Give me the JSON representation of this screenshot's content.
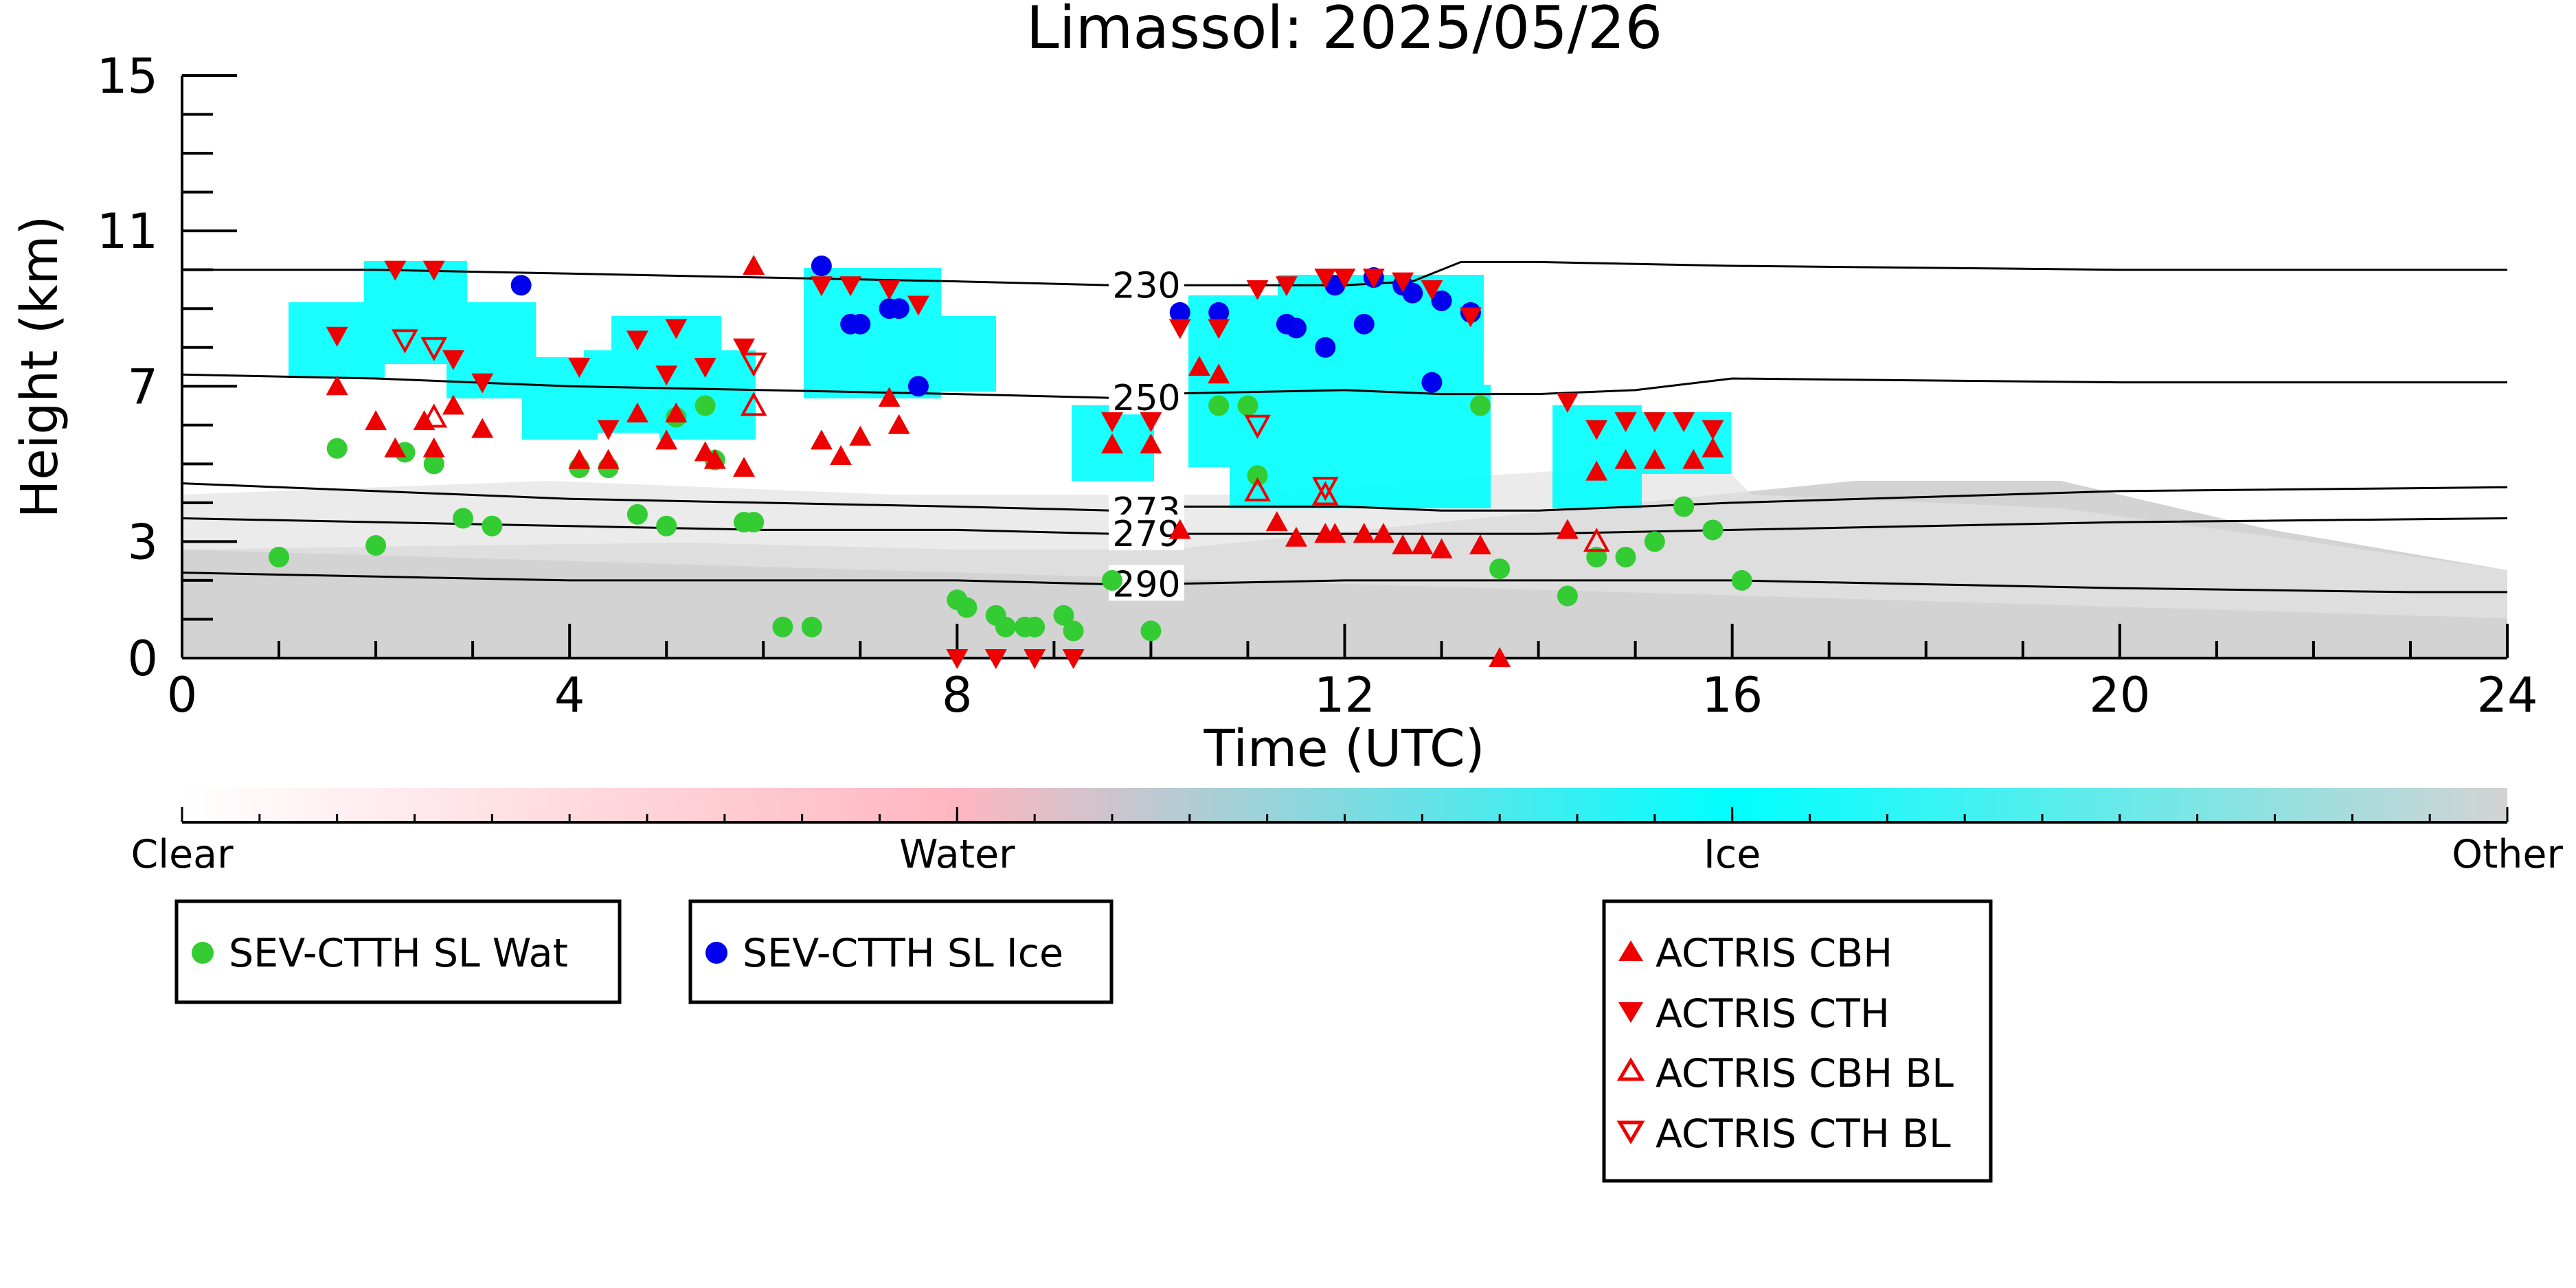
{
  "chart_data": {
    "type": "scatter",
    "title": "Limassol: 2025/05/26",
    "xlabel": "Time (UTC)",
    "ylabel": "Height (km)",
    "xlim": [
      0,
      24
    ],
    "ylim": [
      0,
      15
    ],
    "x_ticks": [
      "0",
      "4",
      "8",
      "12",
      "16",
      "20",
      "24"
    ],
    "y_ticks": [
      "0",
      "3",
      "7",
      "11",
      "15"
    ],
    "grid": false,
    "colorbar": {
      "labels": [
        "Clear",
        "Water",
        "Ice",
        "Other"
      ],
      "colors": [
        "#ffffff",
        "#ffb6c1",
        "#00ffff",
        "#d3d3d3"
      ]
    },
    "isotherms": [
      {
        "label": "230",
        "points": [
          [
            0,
            10.0
          ],
          [
            2,
            10.0
          ],
          [
            4,
            9.9
          ],
          [
            6,
            9.8
          ],
          [
            8,
            9.7
          ],
          [
            9.6,
            9.6
          ],
          [
            10,
            9.6
          ],
          [
            12,
            9.6
          ],
          [
            12.7,
            9.7
          ],
          [
            13.2,
            10.2
          ],
          [
            14,
            10.2
          ],
          [
            16,
            10.1
          ],
          [
            20,
            10.0
          ],
          [
            24,
            10.0
          ]
        ]
      },
      {
        "label": "250",
        "points": [
          [
            0,
            7.3
          ],
          [
            2,
            7.2
          ],
          [
            4,
            7.0
          ],
          [
            6,
            6.9
          ],
          [
            8,
            6.8
          ],
          [
            9.6,
            6.7
          ],
          [
            10,
            6.8
          ],
          [
            12,
            6.9
          ],
          [
            13,
            6.8
          ],
          [
            14,
            6.8
          ],
          [
            15,
            6.9
          ],
          [
            16,
            7.2
          ],
          [
            20,
            7.1
          ],
          [
            24,
            7.1
          ]
        ]
      },
      {
        "label": "273",
        "points": [
          [
            0,
            4.5
          ],
          [
            2,
            4.3
          ],
          [
            4,
            4.1
          ],
          [
            6,
            4.0
          ],
          [
            8,
            3.9
          ],
          [
            9.6,
            3.8
          ],
          [
            10,
            3.9
          ],
          [
            12,
            3.9
          ],
          [
            13,
            3.8
          ],
          [
            14,
            3.8
          ],
          [
            16,
            4.0
          ],
          [
            20,
            4.3
          ],
          [
            24,
            4.4
          ]
        ]
      },
      {
        "label": "279",
        "points": [
          [
            0,
            3.6
          ],
          [
            2,
            3.5
          ],
          [
            4,
            3.4
          ],
          [
            6,
            3.3
          ],
          [
            8,
            3.3
          ],
          [
            9.6,
            3.2
          ],
          [
            10,
            3.2
          ],
          [
            12,
            3.2
          ],
          [
            14,
            3.2
          ],
          [
            16,
            3.3
          ],
          [
            20,
            3.5
          ],
          [
            24,
            3.6
          ]
        ]
      },
      {
        "label": "290",
        "points": [
          [
            0,
            2.2
          ],
          [
            2,
            2.1
          ],
          [
            4,
            2.0
          ],
          [
            6,
            2.0
          ],
          [
            8,
            2.0
          ],
          [
            9.6,
            1.9
          ],
          [
            10,
            1.9
          ],
          [
            12,
            2.0
          ],
          [
            14,
            2.0
          ],
          [
            16,
            2.0
          ],
          [
            20,
            1.8
          ],
          [
            23,
            1.7
          ],
          [
            24,
            1.7
          ]
        ]
      }
    ],
    "series": [
      {
        "name": "SEV-CTTH SL Wat",
        "marker": "circle",
        "color": "#33cc33",
        "x": [
          1.0,
          1.6,
          2.0,
          2.3,
          2.6,
          2.9,
          3.2,
          4.1,
          4.4,
          4.7,
          5.0,
          5.1,
          5.4,
          5.5,
          5.8,
          5.9,
          6.2,
          6.5,
          8.0,
          8.1,
          8.4,
          8.5,
          8.7,
          8.8,
          9.1,
          9.2,
          9.6,
          10.0,
          10.7,
          11.0,
          11.1,
          13.4,
          13.6,
          14.3,
          14.6,
          14.9,
          15.2,
          15.5,
          15.8,
          16.1
        ],
        "y": [
          2.6,
          5.4,
          2.9,
          5.3,
          5.0,
          3.6,
          3.4,
          4.9,
          4.9,
          3.7,
          3.4,
          6.2,
          6.5,
          5.1,
          3.5,
          3.5,
          0.8,
          0.8,
          1.5,
          1.3,
          1.1,
          0.8,
          0.8,
          0.8,
          1.1,
          0.7,
          2.0,
          0.7,
          6.5,
          6.5,
          4.7,
          6.5,
          2.3,
          1.6,
          2.6,
          2.6,
          3.0,
          3.9,
          3.3,
          2.0
        ]
      },
      {
        "name": "SEV-CTTH SL Ice",
        "marker": "circle",
        "color": "#0000ee",
        "x": [
          3.5,
          6.6,
          6.9,
          7.0,
          7.3,
          7.4,
          7.6,
          10.3,
          10.7,
          11.4,
          11.5,
          11.8,
          11.9,
          12.2,
          12.3,
          12.6,
          12.7,
          12.9,
          13.0,
          13.3
        ],
        "y": [
          9.6,
          10.1,
          8.6,
          8.6,
          9.0,
          9.0,
          7.0,
          8.9,
          8.9,
          8.6,
          8.5,
          8.0,
          9.6,
          8.6,
          9.8,
          9.6,
          9.4,
          7.1,
          9.2,
          8.9
        ],
        "legend_group": 2
      },
      {
        "name": "ACTRIS CBH",
        "marker": "triangle-up",
        "color": "#ee0000",
        "filled": true,
        "x": [
          1.6,
          2.0,
          2.2,
          2.5,
          2.6,
          2.8,
          3.1,
          4.1,
          4.4,
          4.7,
          5.0,
          5.1,
          5.4,
          5.5,
          5.8,
          5.9,
          6.6,
          6.8,
          7.0,
          7.3,
          7.4,
          9.6,
          10.0,
          10.3,
          10.5,
          10.7,
          11.3,
          11.5,
          11.8,
          11.9,
          12.2,
          12.4,
          12.6,
          12.8,
          13.0,
          13.4,
          13.6,
          14.3,
          14.6,
          14.9,
          15.2,
          15.6,
          15.8
        ],
        "y": [
          7.0,
          6.1,
          5.4,
          6.1,
          5.4,
          6.5,
          5.9,
          5.1,
          5.1,
          6.3,
          5.6,
          6.3,
          5.3,
          5.1,
          4.9,
          10.1,
          5.6,
          5.2,
          5.7,
          6.7,
          6.0,
          5.5,
          5.5,
          3.3,
          7.5,
          7.3,
          3.5,
          3.1,
          3.2,
          3.2,
          3.2,
          3.2,
          2.9,
          2.9,
          2.8,
          2.9,
          0.0,
          3.3,
          4.8,
          5.1,
          5.1,
          5.1,
          5.4
        ],
        "legend_group": 3
      },
      {
        "name": "ACTRIS CTH",
        "marker": "triangle-down",
        "color": "#ee0000",
        "filled": true,
        "x": [
          1.6,
          2.2,
          2.6,
          2.8,
          3.1,
          4.1,
          4.4,
          4.7,
          5.0,
          5.1,
          5.4,
          5.8,
          6.6,
          6.9,
          7.3,
          7.6,
          8.0,
          8.4,
          8.8,
          9.2,
          9.6,
          10.0,
          10.3,
          10.7,
          11.1,
          11.4,
          11.8,
          12.0,
          12.3,
          12.6,
          12.9,
          13.3,
          14.3,
          14.6,
          14.9,
          15.2,
          15.5,
          15.8
        ],
        "y": [
          8.3,
          10.0,
          10.0,
          7.7,
          7.1,
          7.5,
          5.9,
          8.2,
          7.3,
          8.5,
          7.5,
          8.0,
          9.6,
          9.6,
          9.5,
          9.1,
          0.0,
          0.0,
          0.0,
          0.0,
          6.1,
          6.1,
          8.5,
          8.5,
          9.5,
          9.6,
          9.8,
          9.8,
          9.8,
          9.7,
          9.5,
          8.8,
          6.6,
          5.9,
          6.1,
          6.1,
          6.1,
          5.9
        ],
        "legend_group": 3
      },
      {
        "name": "ACTRIS CBH BL",
        "marker": "triangle-up",
        "color": "#ee0000",
        "filled": false,
        "x": [
          2.6,
          5.9,
          11.1,
          11.8,
          14.6
        ],
        "y": [
          6.2,
          6.5,
          4.3,
          4.2,
          3.0
        ],
        "legend_group": 3
      },
      {
        "name": "ACTRIS CTH BL",
        "marker": "triangle-down",
        "color": "#ee0000",
        "filled": false,
        "x": [
          2.3,
          2.6,
          5.9,
          11.1,
          11.8
        ],
        "y": [
          8.2,
          8.0,
          7.6,
          6.0,
          4.4
        ],
        "legend_group": 3
      }
    ]
  }
}
